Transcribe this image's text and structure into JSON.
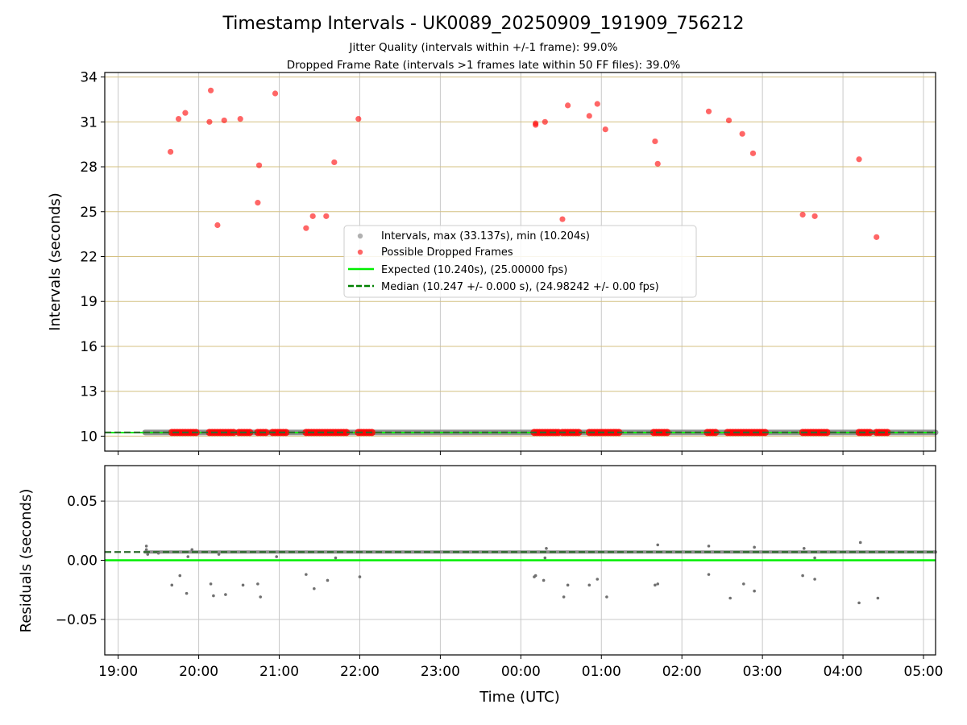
{
  "chart_data": [
    {
      "type": "scatter",
      "title": "Timestamp Intervals - UK0089_20250909_191909_756212",
      "subtitle": [
        "Jitter Quality (intervals within +/-1 frame): 99.0%",
        "Dropped Frame Rate (intervals >1 frames late within 50 FF files): 39.0%"
      ],
      "xlabel": "",
      "ylabel": "Intervals (seconds)",
      "xlim": [
        "18:50",
        "05:09"
      ],
      "ylim": [
        9.0,
        34.3
      ],
      "yticks": [
        "10",
        "13",
        "16",
        "19",
        "22",
        "25",
        "28",
        "31",
        "34"
      ],
      "grid": true,
      "legend_position": "center",
      "legend": [
        "Intervals, max (33.137s), min (10.204s)",
        "Possible Dropped Frames",
        "Expected (10.240s), (25.00000 fps)",
        "Median (10.247 +/- 0.000 s), (24.98242 +/- 0.00 fps)"
      ],
      "colors": {
        "intervals": "#808080",
        "dropped": "#ff0000",
        "expected": "#00ee00",
        "median": "#008000",
        "hgrid": "#d4c081",
        "vgrid": "#c8c8c8"
      },
      "series": [
        {
          "name": "Intervals, max (33.137s), min (10.204s)",
          "kind": "band",
          "x": [
            "19:20",
            "05:09"
          ],
          "y": [
            10.247,
            10.247
          ]
        },
        {
          "name": "Possible Dropped Frames",
          "kind": "points",
          "points": [
            [
              "19:39",
              29.0
            ],
            [
              "19:45",
              31.2
            ],
            [
              "19:50",
              31.6
            ],
            [
              "20:08",
              31.0
            ],
            [
              "20:09",
              33.1
            ],
            [
              "20:14",
              24.1
            ],
            [
              "20:19",
              31.1
            ],
            [
              "20:31",
              31.2
            ],
            [
              "20:44",
              25.6
            ],
            [
              "20:45",
              28.1
            ],
            [
              "20:57",
              32.9
            ],
            [
              "21:20",
              23.9
            ],
            [
              "21:25",
              24.7
            ],
            [
              "21:35",
              24.7
            ],
            [
              "21:41",
              28.3
            ],
            [
              "21:59",
              31.2
            ],
            [
              "00:11",
              30.9
            ],
            [
              "00:11",
              30.8
            ],
            [
              "00:18",
              31.0
            ],
            [
              "00:31",
              24.5
            ],
            [
              "00:35",
              32.1
            ],
            [
              "00:51",
              31.4
            ],
            [
              "00:57",
              32.2
            ],
            [
              "01:03",
              30.5
            ],
            [
              "01:40",
              29.7
            ],
            [
              "01:42",
              28.2
            ],
            [
              "02:20",
              31.7
            ],
            [
              "02:35",
              31.1
            ],
            [
              "02:45",
              30.2
            ],
            [
              "02:53",
              28.9
            ],
            [
              "03:30",
              24.8
            ],
            [
              "03:39",
              24.7
            ],
            [
              "04:12",
              28.5
            ],
            [
              "04:25",
              23.3
            ]
          ],
          "band_points": [
            [
              "19:40",
              10.247
            ],
            [
              "19:42",
              10.247
            ],
            [
              "19:44",
              10.247
            ],
            [
              "19:46",
              10.247
            ],
            [
              "19:48",
              10.247
            ],
            [
              "19:50",
              10.247
            ],
            [
              "19:52",
              10.247
            ],
            [
              "19:54",
              10.247
            ],
            [
              "19:56",
              10.247
            ],
            [
              "19:58",
              10.247
            ],
            [
              "20:08",
              10.247
            ],
            [
              "20:10",
              10.247
            ],
            [
              "20:12",
              10.247
            ],
            [
              "20:14",
              10.247
            ],
            [
              "20:16",
              10.247
            ],
            [
              "20:18",
              10.247
            ],
            [
              "20:20",
              10.247
            ],
            [
              "20:22",
              10.247
            ],
            [
              "20:24",
              10.247
            ],
            [
              "20:26",
              10.247
            ],
            [
              "20:30",
              10.247
            ],
            [
              "20:32",
              10.247
            ],
            [
              "20:34",
              10.247
            ],
            [
              "20:36",
              10.247
            ],
            [
              "20:38",
              10.247
            ],
            [
              "20:44",
              10.247
            ],
            [
              "20:46",
              10.247
            ],
            [
              "20:48",
              10.247
            ],
            [
              "20:50",
              10.247
            ],
            [
              "20:55",
              10.247
            ],
            [
              "20:57",
              10.247
            ],
            [
              "20:59",
              10.247
            ],
            [
              "21:01",
              10.247
            ],
            [
              "21:03",
              10.247
            ],
            [
              "21:05",
              10.247
            ],
            [
              "21:20",
              10.247
            ],
            [
              "21:22",
              10.247
            ],
            [
              "21:24",
              10.247
            ],
            [
              "21:26",
              10.247
            ],
            [
              "21:28",
              10.247
            ],
            [
              "21:30",
              10.247
            ],
            [
              "21:32",
              10.247
            ],
            [
              "21:34",
              10.247
            ],
            [
              "21:36",
              10.247
            ],
            [
              "21:38",
              10.247
            ],
            [
              "21:40",
              10.247
            ],
            [
              "21:42",
              10.247
            ],
            [
              "21:44",
              10.247
            ],
            [
              "21:46",
              10.247
            ],
            [
              "21:48",
              10.247
            ],
            [
              "21:50",
              10.247
            ],
            [
              "21:59",
              10.247
            ],
            [
              "22:01",
              10.247
            ],
            [
              "22:03",
              10.247
            ],
            [
              "22:05",
              10.247
            ],
            [
              "22:07",
              10.247
            ],
            [
              "22:09",
              10.247
            ],
            [
              "00:10",
              10.247
            ],
            [
              "00:12",
              10.247
            ],
            [
              "00:14",
              10.247
            ],
            [
              "00:16",
              10.247
            ],
            [
              "00:18",
              10.247
            ],
            [
              "00:20",
              10.247
            ],
            [
              "00:22",
              10.247
            ],
            [
              "00:24",
              10.247
            ],
            [
              "00:26",
              10.247
            ],
            [
              "00:28",
              10.247
            ],
            [
              "00:31",
              10.247
            ],
            [
              "00:33",
              10.247
            ],
            [
              "00:35",
              10.247
            ],
            [
              "00:37",
              10.247
            ],
            [
              "00:39",
              10.247
            ],
            [
              "00:41",
              10.247
            ],
            [
              "00:43",
              10.247
            ],
            [
              "00:51",
              10.247
            ],
            [
              "00:53",
              10.247
            ],
            [
              "00:55",
              10.247
            ],
            [
              "00:57",
              10.247
            ],
            [
              "00:59",
              10.247
            ],
            [
              "01:01",
              10.247
            ],
            [
              "01:03",
              10.247
            ],
            [
              "01:05",
              10.247
            ],
            [
              "01:07",
              10.247
            ],
            [
              "01:09",
              10.247
            ],
            [
              "01:11",
              10.247
            ],
            [
              "01:13",
              10.247
            ],
            [
              "01:39",
              10.247
            ],
            [
              "01:41",
              10.247
            ],
            [
              "01:43",
              10.247
            ],
            [
              "01:45",
              10.247
            ],
            [
              "01:47",
              10.247
            ],
            [
              "01:49",
              10.247
            ],
            [
              "02:19",
              10.247
            ],
            [
              "02:21",
              10.247
            ],
            [
              "02:23",
              10.247
            ],
            [
              "02:25",
              10.247
            ],
            [
              "02:34",
              10.247
            ],
            [
              "02:36",
              10.247
            ],
            [
              "02:38",
              10.247
            ],
            [
              "02:40",
              10.247
            ],
            [
              "02:42",
              10.247
            ],
            [
              "02:44",
              10.247
            ],
            [
              "02:46",
              10.247
            ],
            [
              "02:48",
              10.247
            ],
            [
              "02:50",
              10.247
            ],
            [
              "02:52",
              10.247
            ],
            [
              "02:54",
              10.247
            ],
            [
              "02:56",
              10.247
            ],
            [
              "02:58",
              10.247
            ],
            [
              "03:00",
              10.247
            ],
            [
              "03:02",
              10.247
            ],
            [
              "03:30",
              10.247
            ],
            [
              "03:32",
              10.247
            ],
            [
              "03:34",
              10.247
            ],
            [
              "03:36",
              10.247
            ],
            [
              "03:38",
              10.247
            ],
            [
              "03:40",
              10.247
            ],
            [
              "03:42",
              10.247
            ],
            [
              "03:44",
              10.247
            ],
            [
              "03:46",
              10.247
            ],
            [
              "03:48",
              10.247
            ],
            [
              "04:12",
              10.247
            ],
            [
              "04:14",
              10.247
            ],
            [
              "04:16",
              10.247
            ],
            [
              "04:18",
              10.247
            ],
            [
              "04:20",
              10.247
            ],
            [
              "04:25",
              10.247
            ],
            [
              "04:27",
              10.247
            ],
            [
              "04:29",
              10.247
            ],
            [
              "04:31",
              10.247
            ],
            [
              "04:33",
              10.247
            ]
          ]
        },
        {
          "name": "Expected (10.240s), (25.00000 fps)",
          "kind": "hline",
          "value": 10.24
        },
        {
          "name": "Median (10.247 +/- 0.000 s), (24.98242 +/- 0.00 fps)",
          "kind": "hline",
          "value": 10.247
        }
      ]
    },
    {
      "type": "scatter",
      "title": "",
      "xlabel": "Time (UTC)",
      "ylabel": "Residuals (seconds)",
      "xlim": [
        "18:50",
        "05:09"
      ],
      "ylim": [
        -0.08,
        0.08
      ],
      "yticks": [
        "−0.05",
        "0.00",
        "0.05"
      ],
      "xticks": [
        "19:00",
        "20:00",
        "21:00",
        "22:00",
        "23:00",
        "00:00",
        "01:00",
        "02:00",
        "03:00",
        "04:00",
        "05:00"
      ],
      "grid": true,
      "colors": {
        "points": "#707070",
        "zero_line": "#00ee00",
        "median_line": "#2e6b2e",
        "grid": "#c8c8c8"
      },
      "series": [
        {
          "kind": "band",
          "x": [
            "19:20",
            "05:09"
          ],
          "y": [
            0.007,
            0.007
          ]
        },
        {
          "kind": "points",
          "points": [
            [
              "19:21",
              0.012
            ],
            [
              "19:21",
              0.009
            ],
            [
              "19:22",
              0.005
            ],
            [
              "19:30",
              0.006
            ],
            [
              "19:40",
              -0.021
            ],
            [
              "19:46",
              -0.013
            ],
            [
              "19:51",
              -0.028
            ],
            [
              "19:52",
              0.003
            ],
            [
              "19:55",
              0.009
            ],
            [
              "20:09",
              -0.02
            ],
            [
              "20:11",
              -0.03
            ],
            [
              "20:15",
              0.005
            ],
            [
              "20:20",
              -0.029
            ],
            [
              "20:33",
              -0.021
            ],
            [
              "20:44",
              -0.02
            ],
            [
              "20:46",
              -0.031
            ],
            [
              "20:58",
              0.003
            ],
            [
              "21:20",
              -0.012
            ],
            [
              "21:26",
              -0.024
            ],
            [
              "21:36",
              -0.017
            ],
            [
              "21:42",
              0.002
            ],
            [
              "22:00",
              -0.014
            ],
            [
              "00:10",
              -0.014
            ],
            [
              "00:11",
              -0.013
            ],
            [
              "00:17",
              -0.017
            ],
            [
              "00:18",
              0.002
            ],
            [
              "00:19",
              0.01
            ],
            [
              "00:32",
              -0.031
            ],
            [
              "00:35",
              -0.021
            ],
            [
              "00:51",
              -0.021
            ],
            [
              "00:57",
              -0.016
            ],
            [
              "01:04",
              -0.031
            ],
            [
              "01:40",
              -0.021
            ],
            [
              "01:42",
              -0.02
            ],
            [
              "01:42",
              0.013
            ],
            [
              "02:20",
              -0.012
            ],
            [
              "02:20",
              0.012
            ],
            [
              "02:36",
              -0.032
            ],
            [
              "02:46",
              -0.02
            ],
            [
              "02:54",
              -0.026
            ],
            [
              "02:54",
              0.011
            ],
            [
              "03:30",
              -0.013
            ],
            [
              "03:31",
              0.01
            ],
            [
              "03:39",
              -0.016
            ],
            [
              "03:39",
              0.002
            ],
            [
              "04:12",
              -0.036
            ],
            [
              "04:13",
              0.015
            ],
            [
              "04:26",
              -0.032
            ]
          ]
        },
        {
          "kind": "hline",
          "value": 0.0
        },
        {
          "kind": "hline",
          "value": 0.007
        }
      ]
    }
  ]
}
